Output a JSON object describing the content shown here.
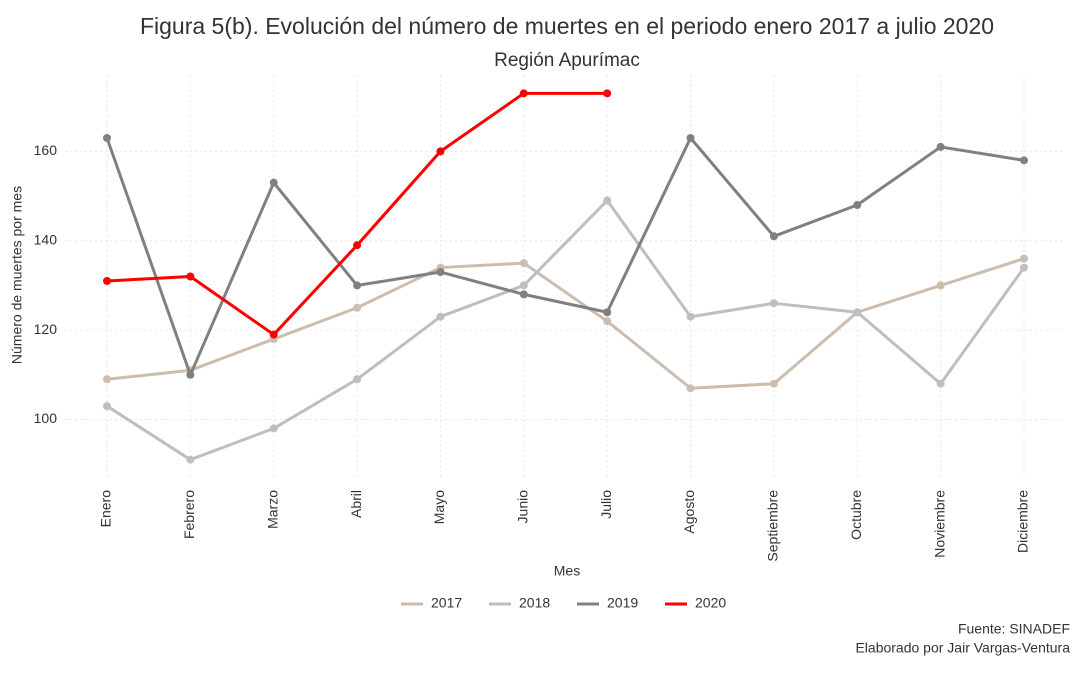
{
  "chart_data": {
    "type": "line",
    "title": "Figura 5(b). Evolución del número de muertes en el periodo enero 2017 a julio 2020",
    "subtitle": "Región Apurímac",
    "x_label": "Mes",
    "y_label": "Número de muertes por mes",
    "caption": [
      "Fuente: SINADEF",
      "Elaborado por Jair Vargas-Ventura"
    ],
    "categories": [
      "Enero",
      "Febrero",
      "Marzo",
      "Abril",
      "Mayo",
      "Junio",
      "Julio",
      "Agosto",
      "Septiembre",
      "Octubre",
      "Noviembre",
      "Diciembre"
    ],
    "series": [
      {
        "name": "2017",
        "color": "#cdbdae",
        "values": [
          109,
          111,
          118,
          125,
          134,
          135,
          122,
          107,
          108,
          124,
          130,
          136
        ]
      },
      {
        "name": "2018",
        "color": "#bebebe",
        "values": [
          103,
          91,
          98,
          109,
          123,
          130,
          149,
          123,
          126,
          124,
          108,
          134
        ]
      },
      {
        "name": "2019",
        "color": "#808080",
        "values": [
          163,
          110,
          153,
          130,
          133,
          128,
          124,
          163,
          141,
          148,
          161,
          158
        ]
      },
      {
        "name": "2020",
        "color": "#ff0000",
        "values": [
          131,
          132,
          119,
          139,
          160,
          173,
          173,
          null,
          null,
          null,
          null,
          null
        ]
      }
    ],
    "ylim": [
      86.9,
      177.1
    ],
    "yticks": [
      100,
      120,
      140,
      160
    ],
    "grid": true,
    "legend": "bottom"
  }
}
